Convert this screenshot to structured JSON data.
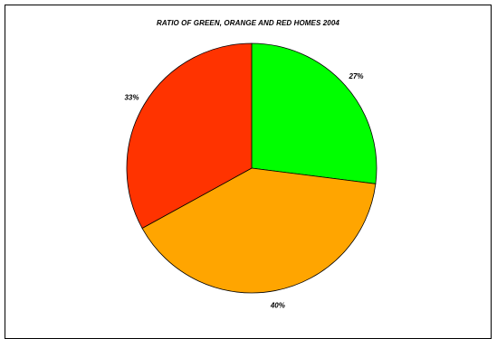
{
  "chart_data": {
    "type": "pie",
    "title": "RATIO OF GREEN, ORANGE AND RED HOMES 2004",
    "slices": [
      {
        "label": "27%",
        "value": 27,
        "color": "#00ff00"
      },
      {
        "label": "40%",
        "value": 40,
        "color": "#ffa500"
      },
      {
        "label": "33%",
        "value": 33,
        "color": "#ff3300"
      }
    ],
    "start_angle_deg": 0,
    "direction": "clockwise",
    "legend": "none"
  }
}
